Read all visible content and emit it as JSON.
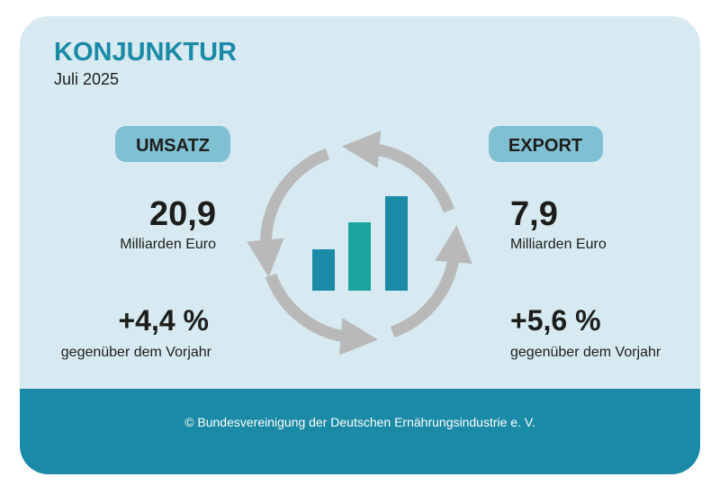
{
  "header": {
    "title": "KONJUNKTUR",
    "subtitle": "Juli 2025"
  },
  "umsatz": {
    "label": "UMSATZ",
    "value": "20,9",
    "unit": "Milliarden Euro",
    "change": "+4,4 %",
    "change_label": "gegenüber dem Vorjahr"
  },
  "export": {
    "label": "EXPORT",
    "value": "7,9",
    "unit": "Milliarden Euro",
    "change": "+5,6 %",
    "change_label": "gegenüber dem Vorjahr"
  },
  "footer": {
    "text": "© Bundesvereinigung der Deutschen Ernährungsindustrie e. V."
  }
}
